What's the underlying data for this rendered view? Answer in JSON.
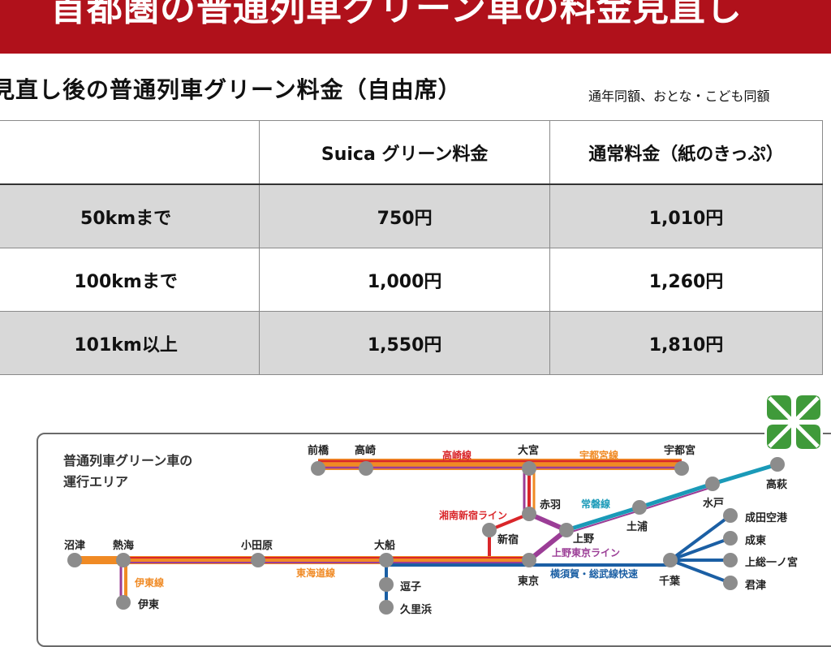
{
  "banner": {
    "title": "首都圏の普通列車グリーン車の料金見直し"
  },
  "subtitle": "見直し後の普通列車グリーン料金（自由席）",
  "note": "通年同額、おとな・こども同額",
  "fare_table": {
    "headers": [
      "",
      "Suica グリーン料金",
      "通常料金（紙のきっぷ）"
    ],
    "rows": [
      {
        "distance": "50kmまで",
        "suica": "750円",
        "paper": "1,010円"
      },
      {
        "distance": "100kmまで",
        "suica": "1,000円",
        "paper": "1,260円"
      },
      {
        "distance": "101km以上",
        "suica": "1,550円",
        "paper": "1,810円"
      }
    ]
  },
  "map": {
    "title_line1": "普通列車グリーン車の",
    "title_line2": "運行エリア",
    "stations": {
      "maebashi": "前橋",
      "takasaki": "高崎",
      "omiya": "大宮",
      "utsunomiya": "宇都宮",
      "akabane": "赤羽",
      "shinjuku": "新宿",
      "ueno": "上野",
      "tsuchiura": "土浦",
      "mito": "水戸",
      "takahagi": "高萩",
      "numazu": "沼津",
      "atami": "熱海",
      "odawara": "小田原",
      "ofuna": "大船",
      "tokyo": "東京",
      "chiba": "千葉",
      "ito": "伊東",
      "zushi": "逗子",
      "kurihama": "久里浜",
      "narita_airport": "成田空港",
      "naruto": "成東",
      "kazusa_ichinomiya": "上総一ノ宮",
      "kimitsu": "君津"
    },
    "lines": {
      "takasaki": "高崎線",
      "utsunomiya": "宇都宮線",
      "shonan_shinjuku": "湘南新宿ライン",
      "joban": "常磐線",
      "ueno_tokyo": "上野東京ライン",
      "tokaido": "東海道線",
      "ito": "伊東線",
      "yokosuka_sobu": "横須賀・総武線快速"
    },
    "line_colors": {
      "tokaido": "#f08a24",
      "shonan_shinjuku": "#d9262a",
      "ueno_tokyo": "#9b3d96",
      "joban": "#1a9ab8",
      "yokosuka_sobu": "#1b5fa4"
    }
  }
}
